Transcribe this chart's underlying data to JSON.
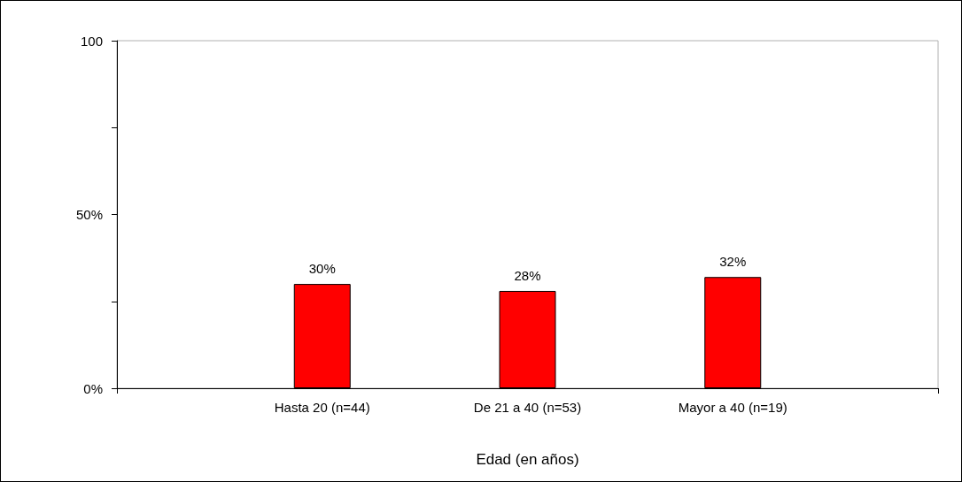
{
  "chart_data": {
    "type": "bar",
    "xlabel": "Edad (en años)",
    "categories": [
      null,
      "Hasta 20 (n=44)",
      "De 21 a 40 (n=53)",
      "Mayor a 40 (n=19)",
      null
    ],
    "values": [
      null,
      30,
      28,
      32,
      null
    ],
    "value_labels": [
      null,
      "30%",
      "28%",
      "32%",
      null
    ],
    "color": "#ff0000",
    "ylim": [
      0,
      100
    ],
    "yticks": [
      {
        "value": 0,
        "label": "0%"
      },
      {
        "value": 25,
        "label": null
      },
      {
        "value": 50,
        "label": "50%"
      },
      {
        "value": 75,
        "label": null
      },
      {
        "value": 100,
        "label": "100"
      }
    ],
    "grid": false
  }
}
